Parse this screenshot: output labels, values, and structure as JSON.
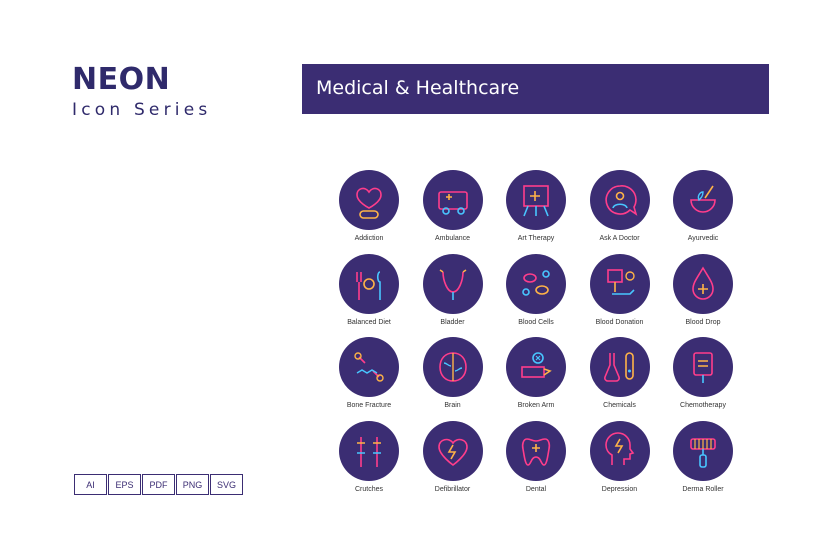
{
  "brand": {
    "title": "NEON",
    "subtitle": "Icon Series"
  },
  "banner": {
    "title": "Medical & Healthcare"
  },
  "colors": {
    "primary": "#3b2d73",
    "neon_pink": "#ff3d8b",
    "neon_orange": "#ffb347",
    "neon_blue": "#48c6ff"
  },
  "icons": [
    {
      "label": "Addiction",
      "icon": "addiction-icon"
    },
    {
      "label": "Ambulance",
      "icon": "ambulance-icon"
    },
    {
      "label": "Art Therapy",
      "icon": "art-therapy-icon"
    },
    {
      "label": "Ask A Doctor",
      "icon": "ask-a-doctor-icon"
    },
    {
      "label": "Ayurvedic",
      "icon": "ayurvedic-icon"
    },
    {
      "label": "Balanced Diet",
      "icon": "balanced-diet-icon"
    },
    {
      "label": "Bladder",
      "icon": "bladder-icon"
    },
    {
      "label": "Blood Cells",
      "icon": "blood-cells-icon"
    },
    {
      "label": "Blood Donation",
      "icon": "blood-donation-icon"
    },
    {
      "label": "Blood Drop",
      "icon": "blood-drop-icon"
    },
    {
      "label": "Bone Fracture",
      "icon": "bone-fracture-icon"
    },
    {
      "label": "Brain",
      "icon": "brain-icon"
    },
    {
      "label": "Broken Arm",
      "icon": "broken-arm-icon"
    },
    {
      "label": "Chemicals",
      "icon": "chemicals-icon"
    },
    {
      "label": "Chemotherapy",
      "icon": "chemotherapy-icon"
    },
    {
      "label": "Crutches",
      "icon": "crutches-icon"
    },
    {
      "label": "Defibrillator",
      "icon": "defibrillator-icon"
    },
    {
      "label": "Dental",
      "icon": "dental-icon"
    },
    {
      "label": "Depression",
      "icon": "depression-icon"
    },
    {
      "label": "Derma Roller",
      "icon": "derma-roller-icon"
    }
  ],
  "formats": [
    "AI",
    "EPS",
    "PDF",
    "PNG",
    "SVG"
  ]
}
